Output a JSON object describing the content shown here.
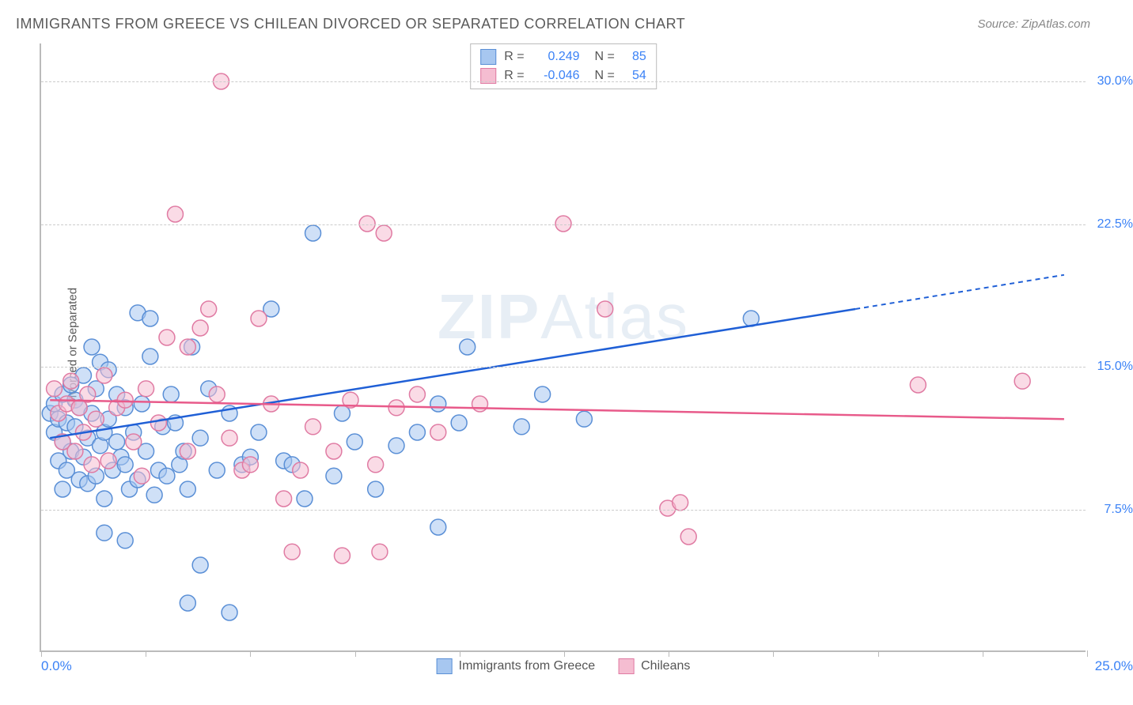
{
  "title": "IMMIGRANTS FROM GREECE VS CHILEAN DIVORCED OR SEPARATED CORRELATION CHART",
  "source": "Source: ZipAtlas.com",
  "watermark_prefix": "ZIP",
  "watermark_suffix": "Atlas",
  "y_axis_title": "Divorced or Separated",
  "chart": {
    "type": "scatter",
    "xlim": [
      0,
      25
    ],
    "ylim": [
      0,
      32
    ],
    "x_ticks": [
      0,
      2.5,
      5,
      7.5,
      10,
      12.5,
      15,
      17.5,
      20,
      22.5,
      25
    ],
    "x_tick_labels_shown": {
      "0": "0.0%",
      "25": "25.0%"
    },
    "y_gridlines": [
      7.5,
      15.0,
      22.5,
      30.0
    ],
    "y_tick_labels": {
      "7.5": "7.5%",
      "15.0": "15.0%",
      "22.5": "22.5%",
      "30.0": "30.0%"
    },
    "background_color": "#ffffff",
    "grid_color": "#cccccc",
    "axis_color": "#bbbbbb",
    "point_radius": 10,
    "point_opacity": 0.55,
    "series": [
      {
        "name": "Immigrants from Greece",
        "color_fill": "#a7c7f0",
        "color_stroke": "#5a8fd6",
        "r_value": "0.249",
        "n_value": "85",
        "trend": {
          "x1": 0.2,
          "y1": 11.2,
          "x2": 19.5,
          "y2": 18.0,
          "color": "#1f5fd6",
          "dash_after_x": 19.5,
          "dash_x2": 24.5,
          "dash_y2": 19.8
        },
        "points": [
          [
            0.2,
            12.5
          ],
          [
            0.3,
            13.0
          ],
          [
            0.3,
            11.5
          ],
          [
            0.4,
            12.2
          ],
          [
            0.4,
            10.0
          ],
          [
            0.5,
            8.5
          ],
          [
            0.5,
            11.0
          ],
          [
            0.5,
            13.5
          ],
          [
            0.6,
            12.0
          ],
          [
            0.6,
            9.5
          ],
          [
            0.7,
            10.5
          ],
          [
            0.7,
            14.0
          ],
          [
            0.8,
            11.8
          ],
          [
            0.8,
            13.2
          ],
          [
            0.9,
            9.0
          ],
          [
            0.9,
            12.8
          ],
          [
            1.0,
            10.2
          ],
          [
            1.0,
            14.5
          ],
          [
            1.1,
            8.8
          ],
          [
            1.1,
            11.2
          ],
          [
            1.2,
            12.5
          ],
          [
            1.2,
            16.0
          ],
          [
            1.3,
            9.2
          ],
          [
            1.3,
            13.8
          ],
          [
            1.4,
            10.8
          ],
          [
            1.4,
            15.2
          ],
          [
            1.5,
            11.5
          ],
          [
            1.5,
            8.0
          ],
          [
            1.6,
            12.2
          ],
          [
            1.6,
            14.8
          ],
          [
            1.7,
            9.5
          ],
          [
            1.8,
            11.0
          ],
          [
            1.8,
            13.5
          ],
          [
            1.9,
            10.2
          ],
          [
            2.0,
            12.8
          ],
          [
            2.0,
            9.8
          ],
          [
            2.1,
            8.5
          ],
          [
            2.2,
            11.5
          ],
          [
            2.3,
            17.8
          ],
          [
            2.3,
            9.0
          ],
          [
            2.4,
            13.0
          ],
          [
            2.5,
            10.5
          ],
          [
            2.6,
            17.5
          ],
          [
            2.6,
            15.5
          ],
          [
            2.7,
            8.2
          ],
          [
            2.8,
            9.5
          ],
          [
            2.9,
            11.8
          ],
          [
            3.0,
            9.2
          ],
          [
            3.1,
            13.5
          ],
          [
            3.2,
            12.0
          ],
          [
            3.3,
            9.8
          ],
          [
            3.4,
            10.5
          ],
          [
            3.5,
            8.5
          ],
          [
            3.5,
            2.5
          ],
          [
            3.6,
            16.0
          ],
          [
            3.8,
            11.2
          ],
          [
            3.8,
            4.5
          ],
          [
            4.0,
            13.8
          ],
          [
            4.2,
            9.5
          ],
          [
            4.5,
            2.0
          ],
          [
            4.5,
            12.5
          ],
          [
            4.8,
            9.8
          ],
          [
            5.0,
            10.2
          ],
          [
            5.2,
            11.5
          ],
          [
            5.5,
            18.0
          ],
          [
            5.8,
            10.0
          ],
          [
            6.0,
            9.8
          ],
          [
            6.3,
            8.0
          ],
          [
            6.5,
            22.0
          ],
          [
            7.0,
            9.2
          ],
          [
            7.2,
            12.5
          ],
          [
            7.5,
            11.0
          ],
          [
            8.0,
            8.5
          ],
          [
            8.5,
            10.8
          ],
          [
            9.0,
            11.5
          ],
          [
            9.5,
            13.0
          ],
          [
            9.5,
            6.5
          ],
          [
            10.0,
            12.0
          ],
          [
            10.2,
            16.0
          ],
          [
            11.5,
            11.8
          ],
          [
            12.0,
            13.5
          ],
          [
            13.0,
            12.2
          ],
          [
            17.0,
            17.5
          ],
          [
            2.0,
            5.8
          ],
          [
            1.5,
            6.2
          ]
        ]
      },
      {
        "name": "Chileans",
        "color_fill": "#f5bdd1",
        "color_stroke": "#e07ba3",
        "r_value": "-0.046",
        "n_value": "54",
        "trend": {
          "x1": 0.2,
          "y1": 13.2,
          "x2": 24.5,
          "y2": 12.2,
          "color": "#e85a8a"
        },
        "points": [
          [
            0.3,
            13.8
          ],
          [
            0.4,
            12.5
          ],
          [
            0.5,
            11.0
          ],
          [
            0.6,
            13.0
          ],
          [
            0.7,
            14.2
          ],
          [
            0.8,
            10.5
          ],
          [
            0.9,
            12.8
          ],
          [
            1.0,
            11.5
          ],
          [
            1.1,
            13.5
          ],
          [
            1.2,
            9.8
          ],
          [
            1.3,
            12.2
          ],
          [
            1.5,
            14.5
          ],
          [
            1.6,
            10.0
          ],
          [
            1.8,
            12.8
          ],
          [
            2.0,
            13.2
          ],
          [
            2.2,
            11.0
          ],
          [
            2.4,
            9.2
          ],
          [
            2.5,
            13.8
          ],
          [
            2.8,
            12.0
          ],
          [
            3.0,
            16.5
          ],
          [
            3.2,
            23.0
          ],
          [
            3.5,
            10.5
          ],
          [
            3.5,
            16.0
          ],
          [
            3.8,
            17.0
          ],
          [
            4.0,
            18.0
          ],
          [
            4.2,
            13.5
          ],
          [
            4.3,
            30.0
          ],
          [
            4.5,
            11.2
          ],
          [
            4.8,
            9.5
          ],
          [
            5.0,
            9.8
          ],
          [
            5.2,
            17.5
          ],
          [
            5.5,
            13.0
          ],
          [
            5.8,
            8.0
          ],
          [
            6.0,
            5.2
          ],
          [
            6.2,
            9.5
          ],
          [
            6.5,
            11.8
          ],
          [
            7.0,
            10.5
          ],
          [
            7.2,
            5.0
          ],
          [
            7.4,
            13.2
          ],
          [
            7.8,
            22.5
          ],
          [
            8.0,
            9.8
          ],
          [
            8.1,
            5.2
          ],
          [
            8.2,
            22.0
          ],
          [
            8.5,
            12.8
          ],
          [
            9.0,
            13.5
          ],
          [
            9.5,
            11.5
          ],
          [
            10.5,
            13.0
          ],
          [
            12.5,
            22.5
          ],
          [
            13.5,
            18.0
          ],
          [
            15.0,
            7.5
          ],
          [
            15.5,
            6.0
          ],
          [
            15.3,
            7.8
          ],
          [
            21.0,
            14.0
          ],
          [
            23.5,
            14.2
          ]
        ]
      }
    ]
  }
}
